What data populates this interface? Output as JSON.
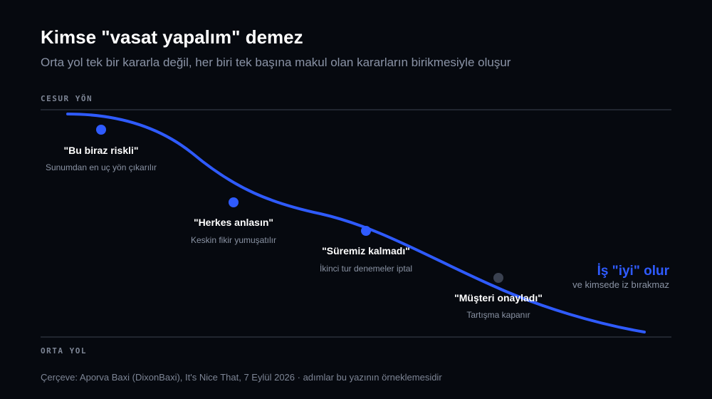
{
  "header": {
    "title": "Kimse \"vasat yapalım\" demez",
    "subtitle": "Orta yol tek bir kararla değil, her biri tek başına makul olan kararların birikmesiyle oluşur"
  },
  "axis": {
    "top": "CESUR YÖN",
    "bottom": "ORTA YOL"
  },
  "steps": [
    {
      "label": "\"Bu biraz riskli\"",
      "note": "Sunumdan en uç yön çıkarılır"
    },
    {
      "label": "\"Herkes anlasın\"",
      "note": "Keskin fikir yumuşatılır"
    },
    {
      "label": "\"Süremiz kalmadı\"",
      "note": "İkinci tur denemeler iptal"
    },
    {
      "label": "\"Müşteri onayladı\"",
      "note": "Tartışma kapanır"
    }
  ],
  "outcome": {
    "label": "İş \"iyi\" olur",
    "note": "ve kimsede iz bırakmaz"
  },
  "footer": {
    "source": "Çerçeve: Aporva Baxi (DixonBaxi), It's Nice That, 7 Eylül 2026 · adımlar bu yazının örneklemesidir"
  }
}
